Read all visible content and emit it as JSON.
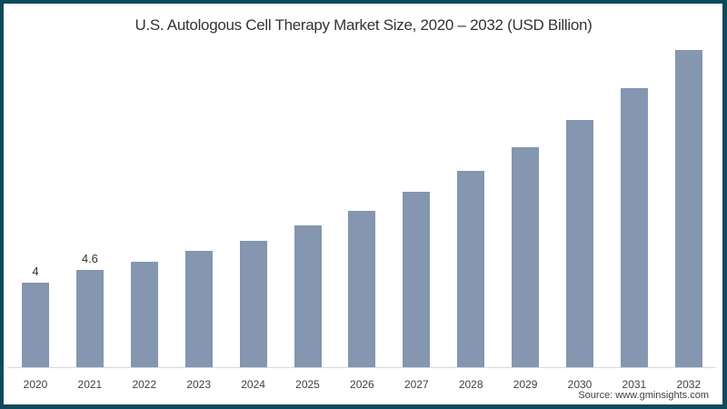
{
  "chart_data": {
    "type": "bar",
    "title": "U.S. Autologous Cell Therapy Market Size, 2020 – 2032 (USD Billion)",
    "xlabel": "",
    "ylabel": "USD Billion",
    "categories": [
      "2020",
      "2021",
      "2022",
      "2023",
      "2024",
      "2025",
      "2026",
      "2027",
      "2028",
      "2029",
      "2030",
      "2031",
      "2032"
    ],
    "values": [
      4.0,
      4.6,
      5.0,
      5.5,
      6.0,
      6.7,
      7.4,
      8.3,
      9.3,
      10.4,
      11.7,
      13.2,
      15.0
    ],
    "data_labels": {
      "2020": "4",
      "2021": "4.6"
    },
    "color": "#8496b0",
    "grid": false,
    "legend": null,
    "ylim": [
      0,
      16
    ]
  },
  "source": "Source: www.gminsights.com",
  "frame_color": "#0d4a5e"
}
